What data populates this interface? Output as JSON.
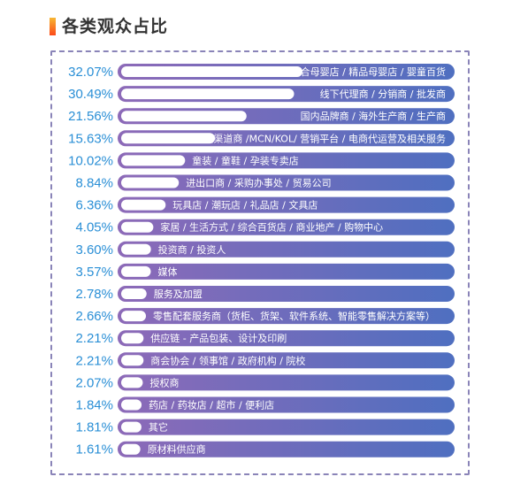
{
  "page": {
    "title": "各类观众占比"
  },
  "colors": {
    "bar_start": "#8d6ab8",
    "bar_end": "#4f6fc0",
    "percent_text": "#2a8fd6",
    "inner_bar": "#ffffff",
    "title_accent_top": "#f7b733",
    "title_accent_bottom": "#fc4a1a"
  },
  "chart_data": {
    "type": "bar",
    "orientation": "horizontal",
    "title": "各类观众占比",
    "unit": "%",
    "categories": [
      "综合母婴店 / 精品母婴店 / 婴童百货",
      "线下代理商 / 分销商 / 批发商",
      "国内品牌商 / 海外生产商 / 生产商",
      "线上渠道商 /MCN/KOL/ 营销平台 / 电商代运营及相关服务",
      "童装 / 童鞋 / 孕装专卖店",
      "进出口商 / 采购办事处 / 贸易公司",
      "玩具店 / 潮玩店 / 礼品店 / 文具店",
      "家居 / 生活方式 / 综合百货店 / 商业地产 / 购物中心",
      "投资商 / 投资人",
      "媒体",
      "服务及加盟",
      "零售配套服务商（货柜、货架、软件系统、智能零售解决方案等）",
      "供应链 - 产品包装、设计及印刷",
      "商会协会 / 领事馆 / 政府机构 / 院校",
      "授权商",
      "药店 / 药妆店 / 超市 / 便利店",
      "其它",
      "原材料供应商"
    ],
    "values": [
      32.07,
      30.49,
      21.56,
      15.63,
      10.02,
      8.84,
      6.36,
      4.05,
      3.6,
      3.57,
      2.78,
      2.66,
      2.21,
      2.21,
      2.07,
      1.84,
      1.81,
      1.61
    ],
    "value_labels": [
      "32.07%",
      "30.49%",
      "21.56%",
      "15.63%",
      "10.02%",
      "8.84%",
      "6.36%",
      "4.05%",
      "3.60%",
      "3.57%",
      "2.78%",
      "2.66%",
      "2.21%",
      "2.21%",
      "2.07%",
      "1.84%",
      "1.81%",
      "1.61%"
    ],
    "xlim": [
      0,
      32.07
    ],
    "grid": false,
    "legend": "none"
  }
}
